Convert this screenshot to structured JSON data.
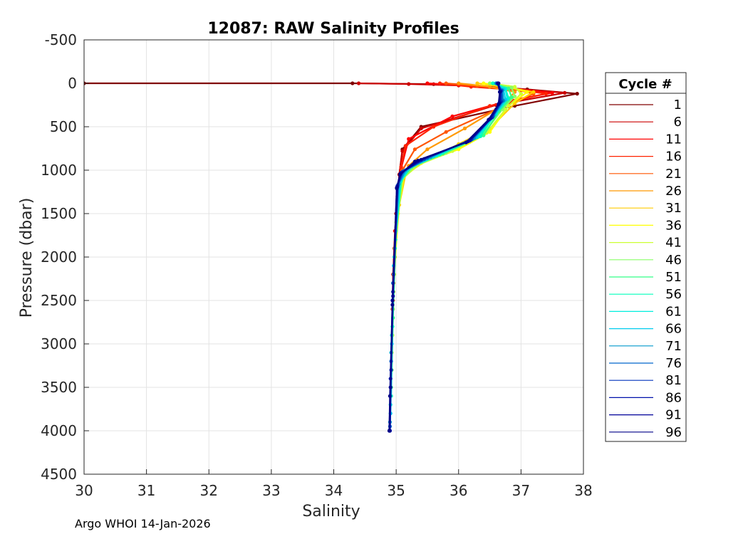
{
  "chart_data": {
    "type": "line",
    "title": "12087: RAW Salinity Profiles",
    "xlabel": "Salinity",
    "ylabel": "Pressure (dbar)",
    "xlim": [
      30,
      38
    ],
    "ylim": [
      -500,
      4500
    ],
    "y_reversed": true,
    "grid": true,
    "x_ticks": [
      "30",
      "31",
      "32",
      "33",
      "34",
      "35",
      "36",
      "37",
      "38"
    ],
    "y_ticks": [
      "-500",
      "0",
      "500",
      "1000",
      "1500",
      "2000",
      "2500",
      "3000",
      "3500",
      "4000",
      "4500"
    ],
    "legend": {
      "title": "Cycle #",
      "placement": "right",
      "entries": [
        "1",
        "6",
        "11",
        "16",
        "21",
        "26",
        "31",
        "36",
        "41",
        "46",
        "51",
        "56",
        "61",
        "66",
        "71",
        "76",
        "81",
        "86",
        "91",
        "96"
      ]
    },
    "series": [
      {
        "name": "1",
        "color": "#800000",
        "x": [
          30.0,
          34.3,
          35.6,
          36.3,
          37.1,
          37.9,
          36.9,
          35.4,
          35.1,
          35.05,
          35.0,
          34.98,
          34.95
        ],
        "y": [
          0,
          0,
          10,
          30,
          70,
          120,
          260,
          500,
          760,
          1050,
          1500,
          2000,
          2300
        ]
      },
      {
        "name": "6",
        "color": "#cc0000",
        "x": [
          34.4,
          35.2,
          36.0,
          36.9,
          37.7,
          36.6,
          35.4,
          35.1,
          35.05,
          35.0,
          34.97,
          34.95
        ],
        "y": [
          0,
          8,
          25,
          60,
          110,
          250,
          520,
          780,
          1050,
          1500,
          2000,
          2400
        ]
      },
      {
        "name": "11",
        "color": "#ff0000",
        "x": [
          35.5,
          36.0,
          36.8,
          37.5,
          36.8,
          35.9,
          35.2,
          35.08,
          35.04,
          34.98,
          34.95,
          34.94
        ],
        "y": [
          0,
          20,
          60,
          110,
          200,
          380,
          640,
          980,
          1200,
          1700,
          2200,
          2600
        ]
      },
      {
        "name": "16",
        "color": "#ff2200",
        "x": [
          35.7,
          36.2,
          37.0,
          37.4,
          36.5,
          35.6,
          35.15,
          35.08,
          35.02,
          34.97,
          34.95
        ],
        "y": [
          0,
          40,
          80,
          120,
          260,
          500,
          720,
          960,
          1300,
          1900,
          2500
        ]
      },
      {
        "name": "21",
        "color": "#ff5500",
        "x": [
          35.8,
          36.3,
          36.9,
          37.2,
          36.6,
          35.8,
          35.3,
          35.1,
          35.04,
          34.98,
          34.95
        ],
        "y": [
          0,
          30,
          70,
          120,
          300,
          560,
          760,
          1000,
          1300,
          1900,
          2500
        ]
      },
      {
        "name": "26",
        "color": "#ff9900",
        "x": [
          36.0,
          36.5,
          36.9,
          36.7,
          36.1,
          35.5,
          35.2,
          35.06,
          35.0,
          34.96
        ],
        "y": [
          0,
          40,
          100,
          260,
          520,
          760,
          950,
          1200,
          1700,
          2300
        ]
      },
      {
        "name": "31",
        "color": "#ffcc00",
        "x": [
          36.3,
          36.8,
          37.2,
          36.9,
          36.5,
          36.0,
          35.5,
          35.15,
          35.05,
          34.98,
          34.95
        ],
        "y": [
          0,
          50,
          100,
          230,
          520,
          700,
          880,
          1050,
          1400,
          2000,
          2600
        ]
      },
      {
        "name": "36",
        "color": "#ffff00",
        "x": [
          36.4,
          36.8,
          37.1,
          36.8,
          36.5,
          36.0,
          35.4,
          35.12,
          35.03,
          34.97,
          34.94
        ],
        "y": [
          0,
          40,
          100,
          260,
          560,
          760,
          920,
          1080,
          1500,
          2200,
          2900
        ]
      },
      {
        "name": "41",
        "color": "#ccff33",
        "x": [
          36.5,
          36.9,
          37.0,
          36.75,
          36.45,
          35.9,
          35.35,
          35.1,
          35.0,
          34.96,
          34.93
        ],
        "y": [
          0,
          40,
          120,
          300,
          570,
          780,
          940,
          1100,
          1600,
          2400,
          3100
        ]
      },
      {
        "name": "46",
        "color": "#88ff66",
        "x": [
          36.5,
          36.85,
          36.9,
          36.7,
          36.4,
          35.8,
          35.3,
          35.1,
          35.0,
          34.95,
          34.93
        ],
        "y": [
          0,
          50,
          150,
          300,
          580,
          800,
          950,
          1100,
          1700,
          2600,
          3300
        ]
      },
      {
        "name": "51",
        "color": "#33ff88",
        "x": [
          36.55,
          36.8,
          36.85,
          36.65,
          36.4,
          35.75,
          35.25,
          35.08,
          34.99,
          34.95,
          34.92
        ],
        "y": [
          0,
          60,
          160,
          320,
          600,
          810,
          960,
          1120,
          1800,
          2700,
          3500
        ]
      },
      {
        "name": "56",
        "color": "#00ffbb",
        "x": [
          36.55,
          36.75,
          36.8,
          36.6,
          36.35,
          35.7,
          35.22,
          35.07,
          34.98,
          34.94,
          34.92
        ],
        "y": [
          0,
          60,
          170,
          340,
          610,
          820,
          970,
          1130,
          1900,
          2800,
          3600
        ]
      },
      {
        "name": "61",
        "color": "#00eedd",
        "x": [
          36.6,
          36.75,
          36.78,
          36.6,
          36.3,
          35.65,
          35.2,
          35.06,
          34.97,
          34.93,
          34.91
        ],
        "y": [
          0,
          70,
          180,
          350,
          620,
          830,
          980,
          1140,
          2000,
          2900,
          3700
        ]
      },
      {
        "name": "66",
        "color": "#00ccee",
        "x": [
          36.6,
          36.72,
          36.75,
          36.58,
          36.28,
          35.6,
          35.18,
          35.05,
          34.96,
          34.93,
          34.91
        ],
        "y": [
          0,
          70,
          190,
          360,
          620,
          840,
          990,
          1150,
          2100,
          3000,
          3800
        ]
      },
      {
        "name": "71",
        "color": "#0099cc",
        "x": [
          36.6,
          36.7,
          36.72,
          36.56,
          36.25,
          35.55,
          35.15,
          35.04,
          34.96,
          34.92,
          34.9
        ],
        "y": [
          0,
          80,
          200,
          370,
          630,
          850,
          1000,
          1160,
          2200,
          3100,
          3900
        ]
      },
      {
        "name": "76",
        "color": "#0066cc",
        "x": [
          36.62,
          36.69,
          36.7,
          36.55,
          36.22,
          35.5,
          35.12,
          35.03,
          34.95,
          34.92,
          34.9
        ],
        "y": [
          0,
          80,
          200,
          380,
          640,
          860,
          1010,
          1170,
          2300,
          3200,
          3950
        ]
      },
      {
        "name": "81",
        "color": "#0033bb",
        "x": [
          36.62,
          36.68,
          36.68,
          36.54,
          36.2,
          35.45,
          35.1,
          35.02,
          34.95,
          34.92,
          34.9
        ],
        "y": [
          0,
          90,
          210,
          390,
          650,
          870,
          1020,
          1180,
          2400,
          3300,
          4000
        ]
      },
      {
        "name": "86",
        "color": "#0011aa",
        "x": [
          36.63,
          36.67,
          36.66,
          36.52,
          36.18,
          35.4,
          35.08,
          35.02,
          34.95,
          34.91,
          34.9
        ],
        "y": [
          0,
          90,
          220,
          400,
          660,
          880,
          1030,
          1190,
          2450,
          3400,
          4000
        ]
      },
      {
        "name": "91",
        "color": "#000099",
        "x": [
          36.63,
          36.66,
          36.65,
          36.5,
          36.15,
          35.35,
          35.07,
          35.01,
          34.94,
          34.91,
          34.89
        ],
        "y": [
          0,
          100,
          230,
          410,
          670,
          890,
          1040,
          1200,
          2500,
          3500,
          4000
        ]
      },
      {
        "name": "96",
        "color": "#000088",
        "x": [
          36.64,
          36.66,
          36.64,
          36.48,
          36.12,
          35.3,
          35.06,
          35.01,
          34.94,
          34.9,
          34.89
        ],
        "y": [
          0,
          100,
          240,
          420,
          680,
          900,
          1050,
          1210,
          2550,
          3600,
          4000
        ]
      }
    ]
  },
  "footer": "Argo WHOI 14-Jan-2026"
}
